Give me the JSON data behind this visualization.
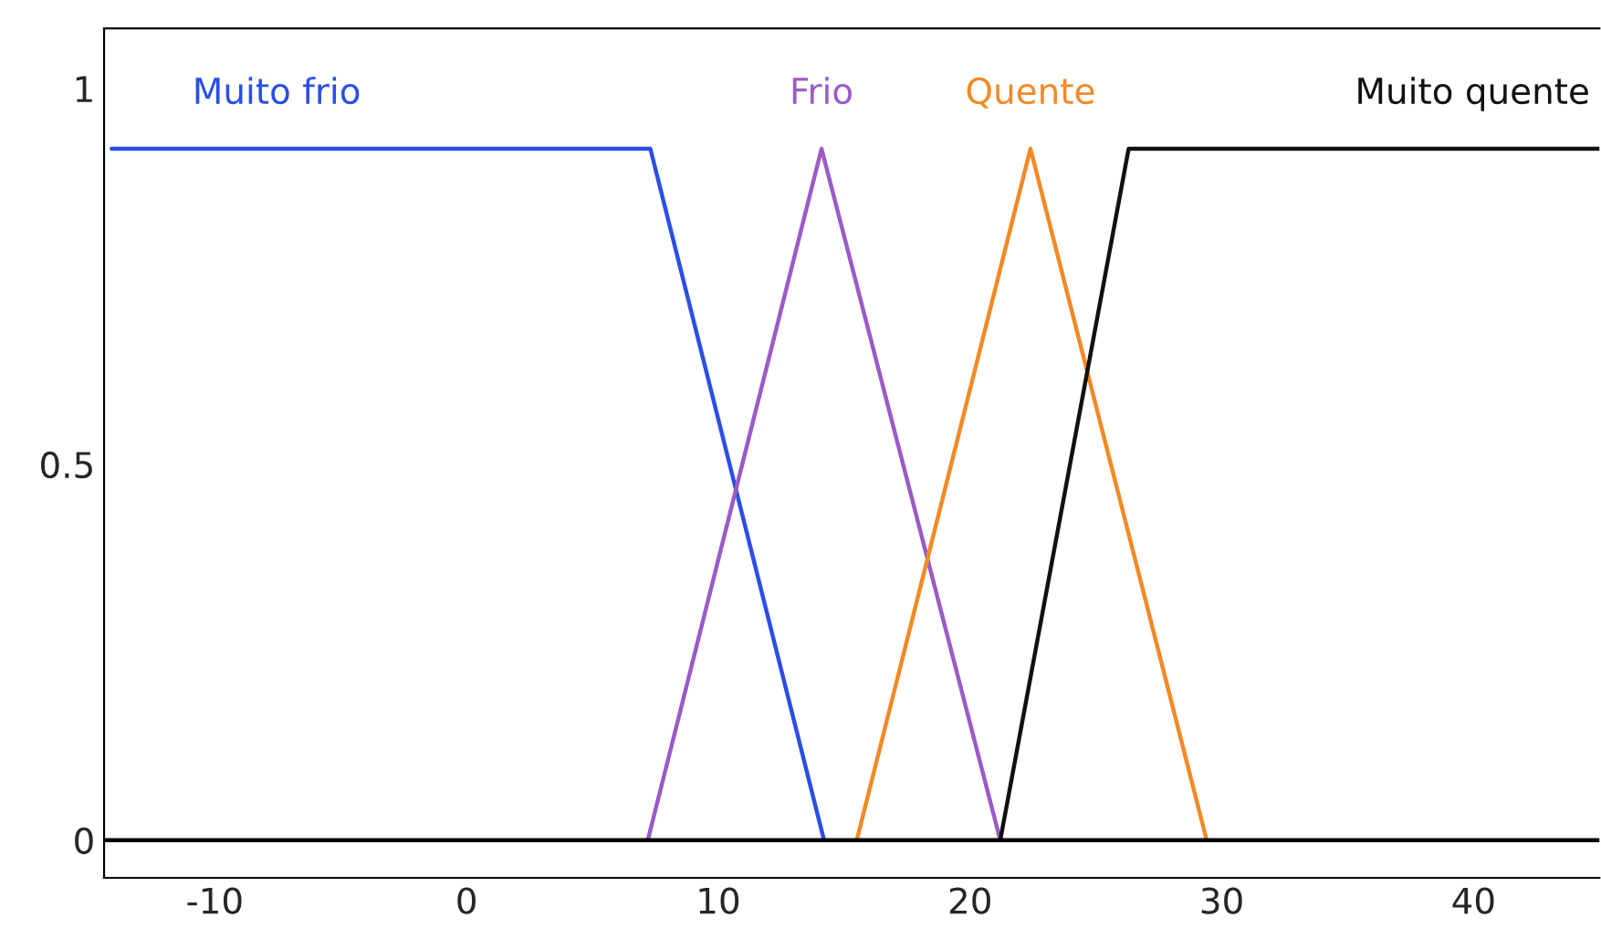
{
  "chart_data": {
    "type": "line",
    "series": [
      {
        "name": "Muito frio",
        "color": "#2a4ee8",
        "x": [
          -14.1,
          7.3,
          14.2
        ],
        "values": [
          0.92,
          0.92,
          0
        ]
      },
      {
        "name": "Frio",
        "color": "#9a5bc8",
        "x": [
          7.2,
          14.1,
          21.2
        ],
        "values": [
          0,
          0.92,
          0
        ]
      },
      {
        "name": "Quente",
        "color": "#f28a25",
        "x": [
          15.5,
          22.4,
          29.4
        ],
        "values": [
          0,
          0.92,
          0
        ]
      },
      {
        "name": "Muito quente",
        "color": "#111111",
        "x": [
          21.2,
          26.3,
          45
        ],
        "values": [
          0,
          0.92,
          0.92
        ]
      }
    ],
    "xlim": [
      -14.4,
      45
    ],
    "xticks": [
      -10,
      0,
      10,
      20,
      30,
      40
    ],
    "ylim": [
      -0.05,
      1.08
    ],
    "yticks": [
      0,
      0.5,
      1
    ],
    "ref_lines": [
      {
        "axis": "y",
        "value": 0,
        "color": "#000000"
      }
    ],
    "grid": false,
    "marker": "none",
    "line_style": "solid"
  }
}
